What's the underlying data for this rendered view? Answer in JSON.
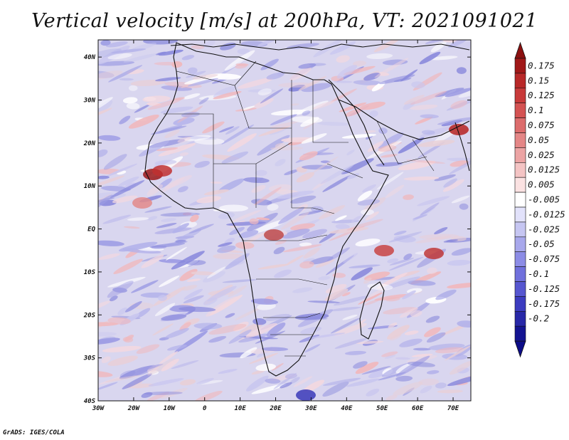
{
  "title": "Vertical velocity [m/s] at 200hPa, VT: 2021091021",
  "credit": "GrADS: IGES/COLA",
  "map": {
    "lon_ticks": [
      "30W",
      "20W",
      "10W",
      "0",
      "10E",
      "20E",
      "30E",
      "40E",
      "50E",
      "60E",
      "70E"
    ],
    "lat_ticks": [
      "40N",
      "30N",
      "20N",
      "10N",
      "EQ",
      "10S",
      "20S",
      "30S",
      "40S"
    ],
    "lon_range": [
      -30,
      75
    ],
    "lat_range": [
      -40,
      44
    ]
  },
  "colorbar": {
    "labels": [
      "0.175",
      "0.15",
      "0.125",
      "0.1",
      "0.075",
      "0.05",
      "0.025",
      "0.0125",
      "0.005",
      "-0.005",
      "-0.0125",
      "-0.025",
      "-0.05",
      "-0.075",
      "-0.1",
      "-0.125",
      "-0.175",
      "-0.2"
    ],
    "colors": [
      "#a01818",
      "#b82828",
      "#c83a3a",
      "#d45252",
      "#dc6c6c",
      "#e48686",
      "#eca4a4",
      "#f4c4c4",
      "#fbe2e2",
      "#ffffff",
      "#e2e2fb",
      "#c6c6f2",
      "#a8a8ec",
      "#8c8ce6",
      "#7070dc",
      "#5656d0",
      "#3c3cc0",
      "#2828a8",
      "#141492"
    ],
    "max_color": "#8c1010",
    "min_color": "#0c0c88"
  }
}
